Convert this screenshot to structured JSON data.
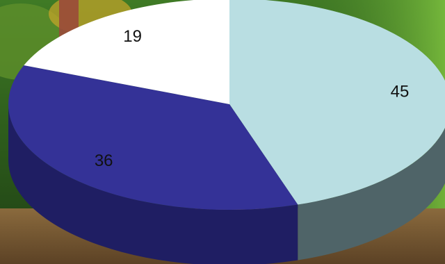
{
  "chart_data": {
    "type": "pie",
    "title": "",
    "style": "3d",
    "start_angle_deg": -90,
    "direction": "clockwise",
    "slices": [
      {
        "label": "45",
        "value": 45,
        "color": "#b9dee2",
        "side_color": "#4f6468"
      },
      {
        "label": "36",
        "value": 36,
        "color": "#343297",
        "side_color": "#1f1e63"
      },
      {
        "label": "19",
        "value": 19,
        "color": "#ffffff",
        "side_color": "#d8d8d8"
      }
    ]
  },
  "background": {
    "description_colors": [
      "#2d5a1e",
      "#4f8a2c",
      "#7a5a32"
    ]
  }
}
